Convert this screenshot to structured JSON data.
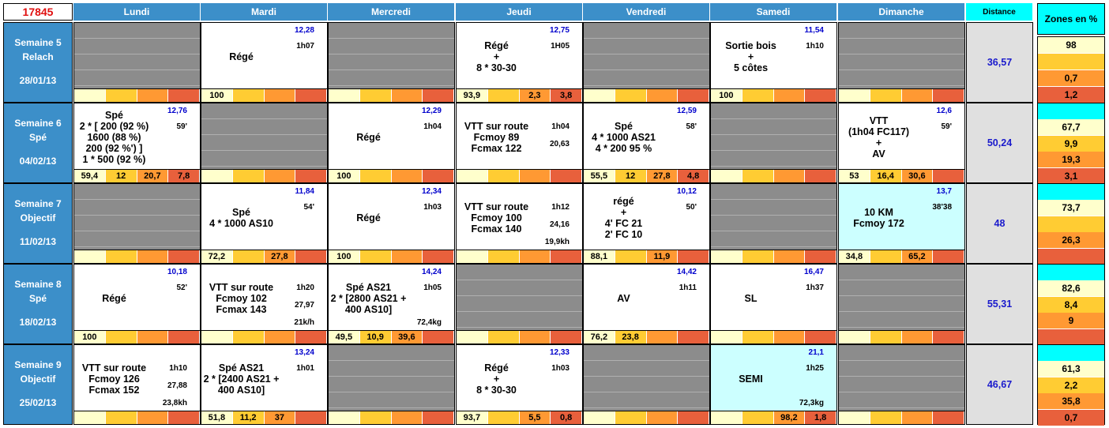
{
  "header": {
    "id": "17845",
    "days": [
      "Lundi",
      "Mardi",
      "Mercredi",
      "Jeudi",
      "Vendredi",
      "Samedi",
      "Dimanche"
    ],
    "distance": "Distance",
    "zones": "Zones en %"
  },
  "weeks": [
    {
      "l1": "Semaine 5",
      "l2": "Relach",
      "date": "28/01/13",
      "total": "36,57",
      "zones": [
        "",
        "98",
        "",
        "0,7",
        "1,2"
      ],
      "days": [
        {
          "rest": true,
          "zb": [
            "",
            "",
            "",
            ""
          ]
        },
        {
          "work": [
            "Régé"
          ],
          "dist": "12,28",
          "time": "1h07",
          "zb": [
            "100",
            "",
            "",
            ""
          ]
        },
        {
          "rest": true,
          "zb": [
            "",
            "",
            "",
            ""
          ]
        },
        {
          "work": [
            "Régé",
            "+",
            "8 * 30-30"
          ],
          "dist": "12,75",
          "time": "1H05",
          "zb": [
            "93,9",
            "",
            "2,3",
            "3,8"
          ]
        },
        {
          "rest": true,
          "zb": [
            "",
            "",
            "",
            ""
          ]
        },
        {
          "work": [
            "Sortie bois",
            "+",
            "5 côtes"
          ],
          "dist": "11,54",
          "time": "1h10",
          "zb": [
            "100",
            "",
            "",
            ""
          ]
        },
        {
          "rest": true,
          "zb": [
            "",
            "",
            "",
            ""
          ]
        }
      ]
    },
    {
      "l1": "Semaine 6",
      "l2": "Spé",
      "date": "04/02/13",
      "total": "50,24",
      "zones": [
        "",
        "67,7",
        "9,9",
        "19,3",
        "3,1"
      ],
      "days": [
        {
          "work": [
            "Spé",
            "2 * [ 200 (92 %)",
            "1600 (88 %)",
            "200 (92 %') ]",
            "1 * 500 (92 %)"
          ],
          "dist": "12,76",
          "time": "59'",
          "zb": [
            "59,4",
            "12",
            "20,7",
            "7,8"
          ]
        },
        {
          "rest": true,
          "zb": [
            "",
            "",
            "",
            ""
          ]
        },
        {
          "work": [
            "Régé"
          ],
          "dist": "12,29",
          "time": "1h04",
          "zb": [
            "100",
            "",
            "",
            ""
          ]
        },
        {
          "work": [
            "VTT sur route",
            "Fcmoy 89",
            "Fcmax 122"
          ],
          "dist": "",
          "time": "1h04",
          "extra": "20,63",
          "zb": [
            "",
            "",
            "",
            ""
          ]
        },
        {
          "work": [
            "Spé",
            "4 * 1000 AS21",
            "4 * 200 95 %"
          ],
          "dist": "12,59",
          "time": "58'",
          "zb": [
            "55,5",
            "12",
            "27,8",
            "4,8"
          ]
        },
        {
          "rest": true,
          "zb": [
            "",
            "",
            "",
            ""
          ]
        },
        {
          "work": [
            "VTT",
            "(1h04 FC117)",
            "+",
            "AV"
          ],
          "dist": "12,6",
          "time": "59'",
          "zb": [
            "53",
            "16,4",
            "30,6",
            ""
          ]
        }
      ]
    },
    {
      "l1": "Semaine 7",
      "l2": "Objectif",
      "date": "11/02/13",
      "total": "48",
      "zones": [
        "",
        "73,7",
        "",
        "26,3",
        ""
      ],
      "days": [
        {
          "rest": true,
          "zb": [
            "",
            "",
            "",
            ""
          ]
        },
        {
          "work": [
            "Spé",
            "4 * 1000 AS10"
          ],
          "dist": "11,84",
          "time": "54'",
          "zb": [
            "72,2",
            "",
            "27,8",
            ""
          ]
        },
        {
          "work": [
            "Régé"
          ],
          "dist": "12,34",
          "time": "1h03",
          "zb": [
            "100",
            "",
            "",
            ""
          ]
        },
        {
          "work": [
            "VTT sur route",
            "Fcmoy 100",
            "Fcmax 140"
          ],
          "dist": "",
          "time": "1h12",
          "extra": "24,16",
          "extra2": "19,9kh",
          "zb": [
            "",
            "",
            "",
            ""
          ]
        },
        {
          "work": [
            "régé",
            "+",
            "4' FC 21",
            "2' FC 10"
          ],
          "dist": "10,12",
          "time": "50'",
          "zb": [
            "88,1",
            "",
            "11,9",
            ""
          ]
        },
        {
          "rest": true,
          "zb": [
            "",
            "",
            "",
            ""
          ]
        },
        {
          "work": [
            "10 KM",
            "Fcmoy 172"
          ],
          "dist": "13,7",
          "time": "38'38",
          "cyan": true,
          "zb": [
            "34,8",
            "",
            "65,2",
            ""
          ]
        }
      ]
    },
    {
      "l1": "Semaine 8",
      "l2": "Spé",
      "date": "18/02/13",
      "total": "55,31",
      "zones": [
        "",
        "82,6",
        "8,4",
        "9",
        ""
      ],
      "days": [
        {
          "work": [
            "Régé"
          ],
          "dist": "10,18",
          "time": "52'",
          "zb": [
            "100",
            "",
            "",
            ""
          ]
        },
        {
          "work": [
            "VTT sur route",
            "Fcmoy 102",
            "Fcmax 143"
          ],
          "dist": "",
          "time": "1h20",
          "extra": "27,97",
          "extra2": "21k/h",
          "zb": [
            "",
            "",
            "",
            ""
          ]
        },
        {
          "work": [
            "Spé AS21",
            "2 * [2800 AS21 +",
            "400 AS10]"
          ],
          "dist": "14,24",
          "time": "1h05",
          "extra2": "72,4kg",
          "zb": [
            "49,5",
            "10,9",
            "39,6",
            ""
          ]
        },
        {
          "rest": true,
          "zb": [
            "",
            "",
            "",
            ""
          ]
        },
        {
          "work": [
            "AV"
          ],
          "dist": "14,42",
          "time": "1h11",
          "zb": [
            "76,2",
            "23,8",
            "",
            ""
          ]
        },
        {
          "work": [
            "SL"
          ],
          "dist": "16,47",
          "time": "1h37",
          "zb": [
            "",
            "",
            "",
            ""
          ]
        },
        {
          "rest": true,
          "zb": [
            "",
            "",
            "",
            ""
          ]
        }
      ]
    },
    {
      "l1": "Semaine 9",
      "l2": "Objectif",
      "date": "25/02/13",
      "total": "46,67",
      "zones": [
        "",
        "61,3",
        "2,2",
        "35,8",
        "0,7"
      ],
      "days": [
        {
          "work": [
            "VTT sur route",
            "Fcmoy 126",
            "Fcmax 152"
          ],
          "dist": "",
          "time": "1h10",
          "extra": "27,88",
          "extra2": "23,8kh",
          "zb": [
            "",
            "",
            "",
            ""
          ]
        },
        {
          "work": [
            "Spé AS21",
            "2 * [2400 AS21 +",
            "400 AS10]"
          ],
          "dist": "13,24",
          "time": "1h01",
          "zb": [
            "51,8",
            "11,2",
            "37",
            ""
          ]
        },
        {
          "rest": true,
          "zb": [
            "",
            "",
            "",
            ""
          ]
        },
        {
          "work": [
            "Régé",
            "+",
            "8 * 30-30"
          ],
          "dist": "12,33",
          "time": "1h03",
          "zb": [
            "93,7",
            "",
            "5,5",
            "0,8"
          ]
        },
        {
          "rest": true,
          "zb": [
            "",
            "",
            "",
            ""
          ]
        },
        {
          "work": [
            "SEMI"
          ],
          "dist": "21,1",
          "time": "1h25",
          "extra2": "72,3kg",
          "cyan": true,
          "zb": [
            "",
            "",
            "98,2",
            "1,8"
          ]
        },
        {
          "rest": true,
          "zb": [
            "",
            "",
            "",
            ""
          ]
        }
      ]
    }
  ]
}
